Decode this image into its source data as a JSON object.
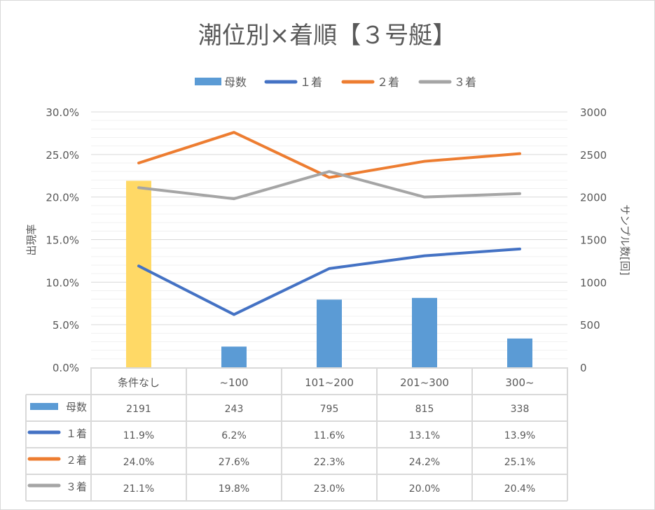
{
  "chart_data": {
    "type": "bar+line",
    "title": "潮位別×着順【３号艇】",
    "categories": [
      "条件なし",
      "~100",
      "101~200",
      "201~300",
      "300~"
    ],
    "series": [
      {
        "name": "母数",
        "kind": "bar",
        "axis": "right",
        "values": [
          2191,
          243,
          795,
          815,
          338
        ],
        "labels": [
          "2191",
          "243",
          "795",
          "815",
          "338"
        ],
        "color": "#5B9BD5",
        "highlight_color": "#FFD966"
      },
      {
        "name": "１着",
        "kind": "line",
        "axis": "left",
        "values": [
          11.9,
          6.2,
          11.6,
          13.1,
          13.9
        ],
        "labels": [
          "11.9%",
          "6.2%",
          "11.6%",
          "13.1%",
          "13.9%"
        ],
        "color": "#4472C4"
      },
      {
        "name": "２着",
        "kind": "line",
        "axis": "left",
        "values": [
          24.0,
          27.6,
          22.3,
          24.2,
          25.1
        ],
        "labels": [
          "24.0%",
          "27.6%",
          "22.3%",
          "24.2%",
          "25.1%"
        ],
        "color": "#ED7D31"
      },
      {
        "name": "３着",
        "kind": "line",
        "axis": "left",
        "values": [
          21.1,
          19.8,
          23.0,
          20.0,
          20.4
        ],
        "labels": [
          "21.1%",
          "19.8%",
          "23.0%",
          "20.0%",
          "20.4%"
        ],
        "color": "#A5A5A5"
      }
    ],
    "ylabel": "出現率",
    "ylabel_right": "サンプル数[回]",
    "ylim": [
      0,
      30
    ],
    "ylim_right": [
      0,
      3000
    ],
    "yticks": [
      "0.0%",
      "5.0%",
      "10.0%",
      "15.0%",
      "20.0%",
      "25.0%",
      "30.0%"
    ],
    "yticks_right": [
      "0",
      "500",
      "1000",
      "1500",
      "2000",
      "2500",
      "3000"
    ],
    "grid": true,
    "legend": "top",
    "data_table": true
  }
}
